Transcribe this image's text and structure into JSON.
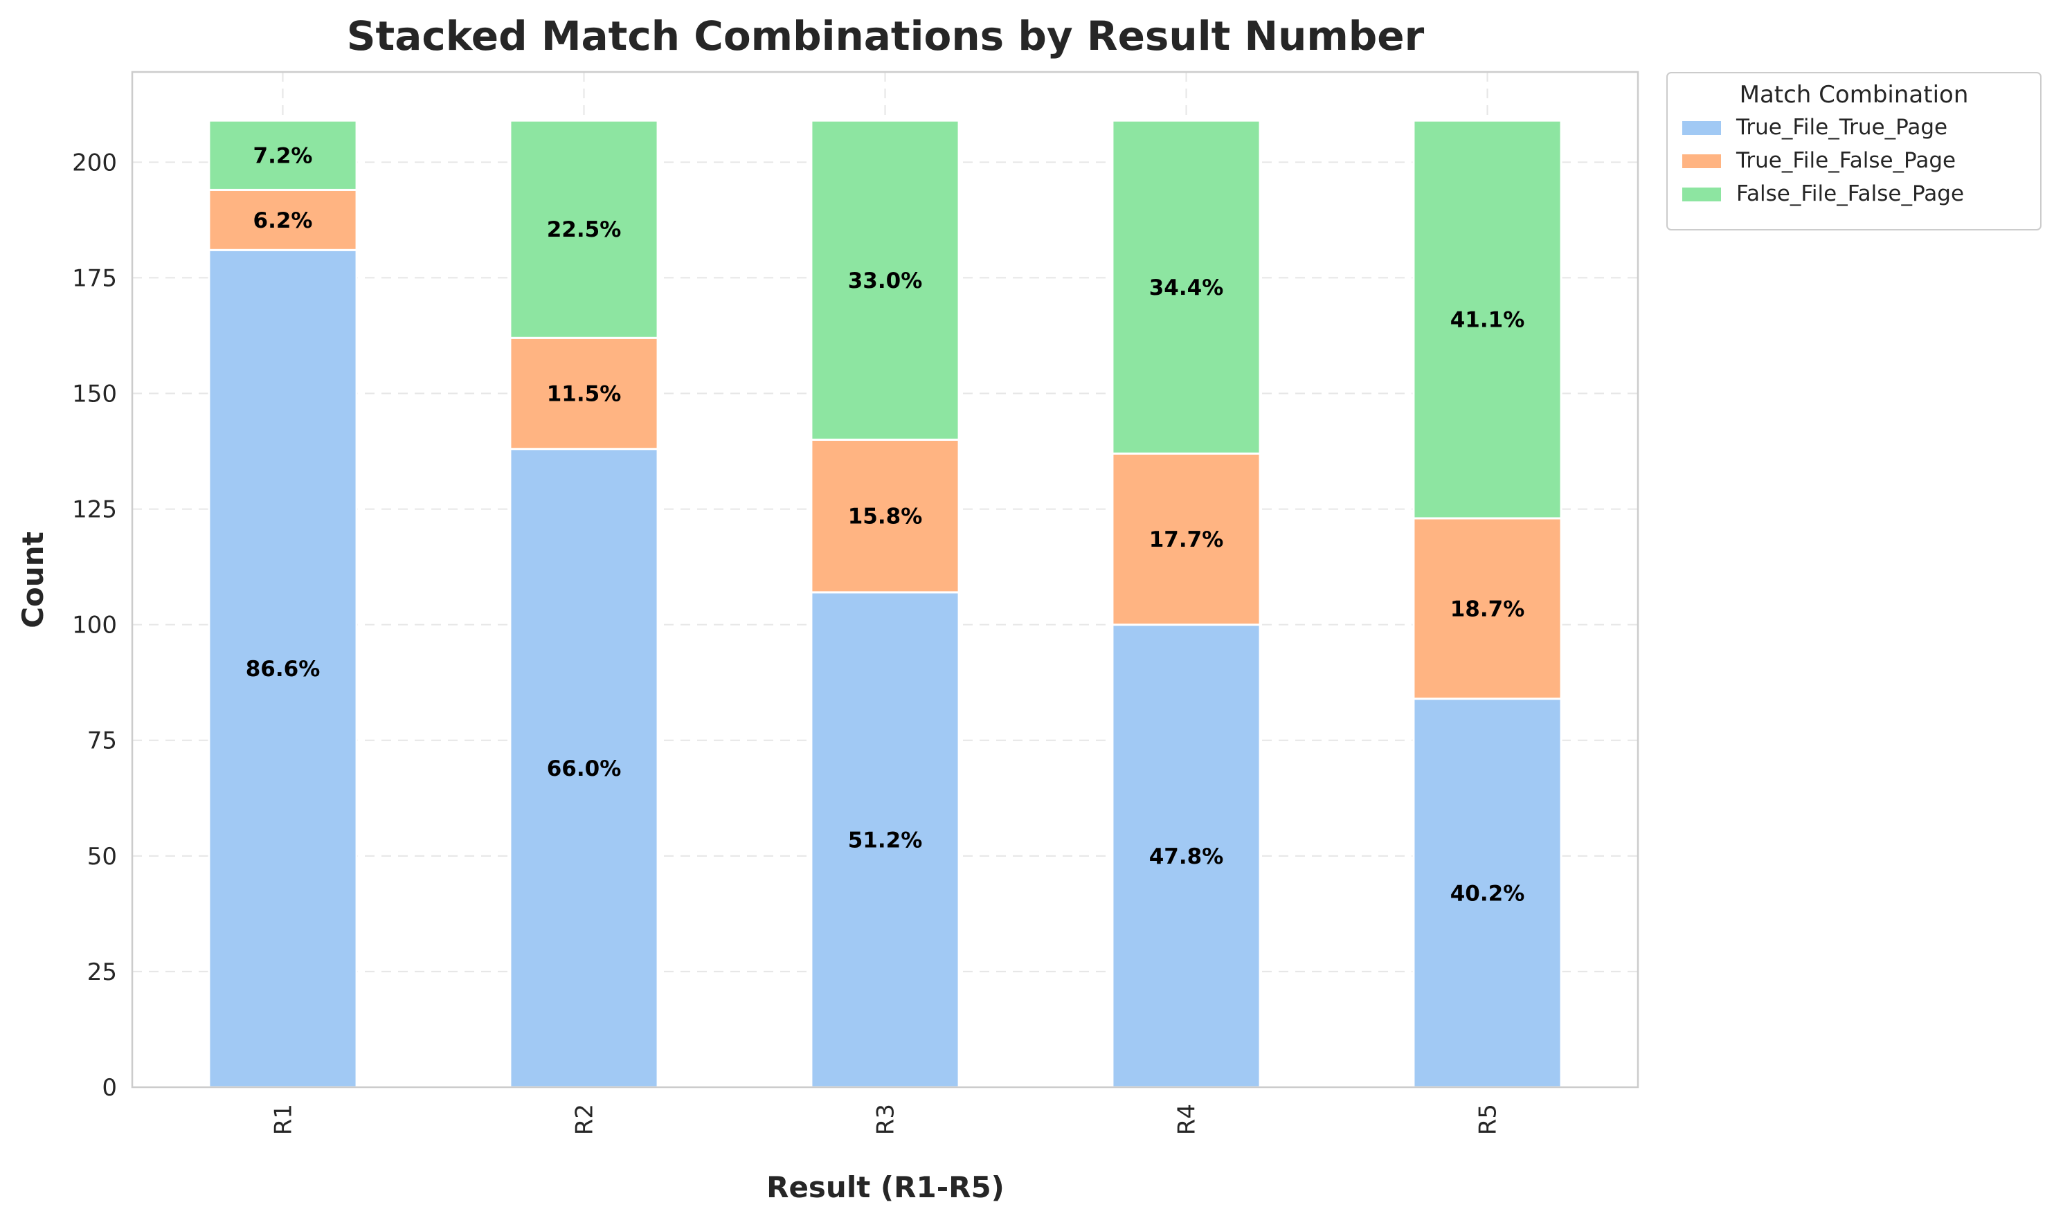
{
  "chart_data": {
    "type": "bar",
    "stacked": true,
    "title": "Stacked Match Combinations by Result Number",
    "xlabel": "Result (R1-R5)",
    "ylabel": "Count",
    "categories": [
      "R1",
      "R2",
      "R3",
      "R4",
      "R5"
    ],
    "ylim": [
      0,
      219.5
    ],
    "yticks": [
      0,
      25,
      50,
      75,
      100,
      125,
      150,
      175,
      200
    ],
    "grid": true,
    "legend": {
      "title": "Match Combination",
      "placement": "outside upper right"
    },
    "series": [
      {
        "name": "True_File_True_Page",
        "color": "#a1c9f4",
        "values": [
          181,
          138,
          107,
          100,
          84
        ],
        "labels": [
          "86.6%",
          "66.0%",
          "51.2%",
          "47.8%",
          "40.2%"
        ]
      },
      {
        "name": "True_File_False_Page",
        "color": "#ffb482",
        "values": [
          13,
          24,
          33,
          37,
          39
        ],
        "labels": [
          "6.2%",
          "11.5%",
          "15.8%",
          "17.7%",
          "18.7%"
        ]
      },
      {
        "name": "False_File_False_Page",
        "color": "#8de5a1",
        "values": [
          15,
          47,
          69,
          72,
          86
        ],
        "labels": [
          "7.2%",
          "22.5%",
          "33.0%",
          "34.4%",
          "41.1%"
        ]
      }
    ]
  }
}
